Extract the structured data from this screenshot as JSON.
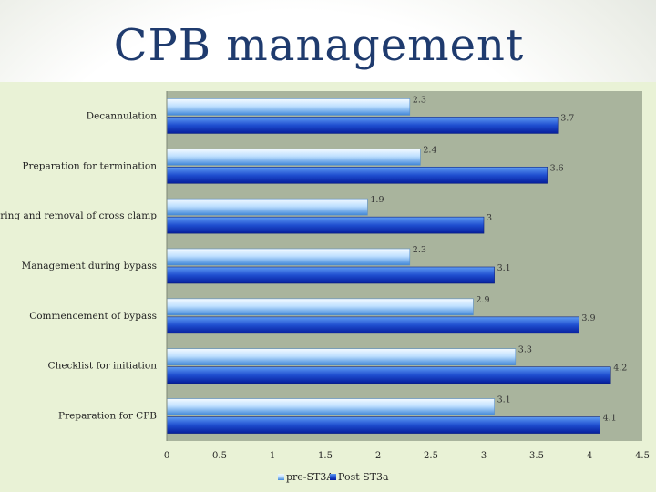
{
  "slide": {
    "title": "CPB management"
  },
  "colors": {
    "panel": "#e9f2d6",
    "plot_area": "#a9b49d",
    "pre_fill_light": "#d6ecff",
    "pre_fill_dark": "#3f86d8",
    "post_fill_light": "#3c7fe8",
    "post_fill_dark": "#061e9c"
  },
  "chart_data": {
    "type": "bar",
    "orientation": "horizontal",
    "title": "",
    "xlabel": "",
    "ylabel": "",
    "xlim": [
      0,
      4.5
    ],
    "x_ticks": [
      0,
      0.5,
      1,
      1.5,
      2,
      2.5,
      3,
      3.5,
      4,
      4.5
    ],
    "x_tick_labels": [
      "0",
      "0.5",
      "1",
      "1.5",
      "2",
      "2.5",
      "3",
      "3.5",
      "4",
      "4.5"
    ],
    "grid": false,
    "legend_position": "bottom",
    "categories": [
      "Decannulation",
      "Preparation for termination",
      "De-airing and removal of cross clamp",
      "Management during bypass",
      "Commencement of bypass",
      "Checklist for initiation",
      "Preparation for CPB"
    ],
    "series": [
      {
        "name": "pre-ST3A",
        "style": "light",
        "values": [
          2.3,
          2.4,
          1.9,
          2.3,
          2.9,
          3.3,
          3.1
        ],
        "labels": [
          "2.3",
          "2.4",
          "1.9",
          "2.3",
          "2.9",
          "3.3",
          "3.1"
        ]
      },
      {
        "name": "Post ST3a",
        "style": "dark",
        "values": [
          3.7,
          3.6,
          3,
          3.1,
          3.9,
          4.2,
          4.1
        ],
        "labels": [
          "3.7",
          "3.6",
          "3",
          "3.1",
          "3.9",
          "4.2",
          "4.1"
        ]
      }
    ]
  }
}
